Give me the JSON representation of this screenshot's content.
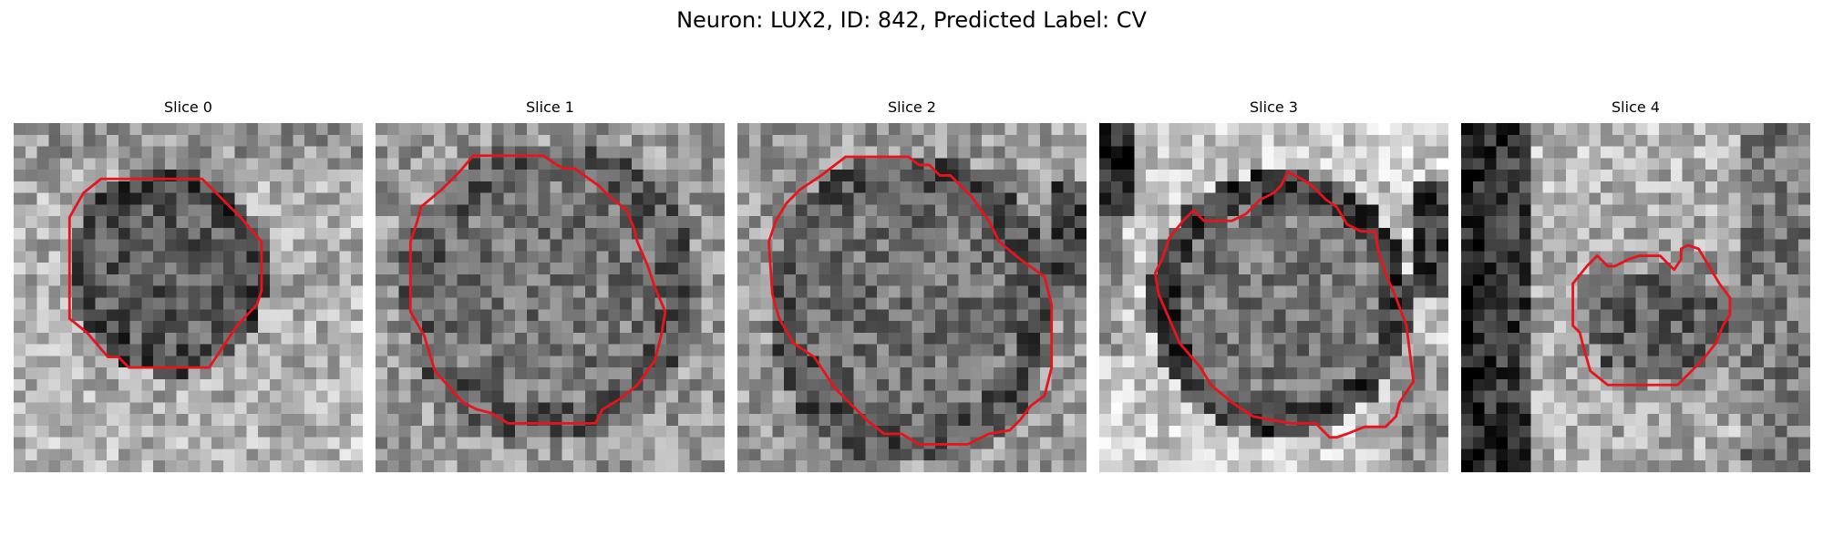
{
  "figure": {
    "title": "Neuron: LUX2, ID: 842, Predicted Label: CV"
  },
  "contour_color": "#e8141c",
  "colormap": "grayscale",
  "panels": [
    {
      "title": "Slice 0"
    },
    {
      "title": "Slice 1"
    },
    {
      "title": "Slice 2"
    },
    {
      "title": "Slice 3"
    },
    {
      "title": "Slice 4"
    }
  ]
}
